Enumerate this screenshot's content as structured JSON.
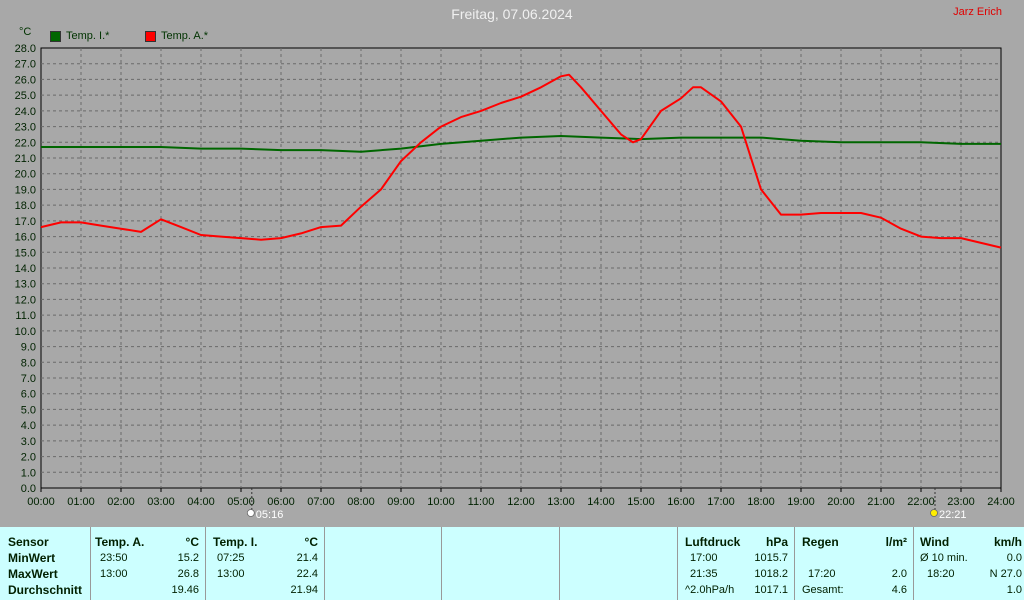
{
  "title": "Freitag, 07.06.2024",
  "author": "Jarz Erich",
  "chart_data": {
    "type": "line",
    "unit_label": "°C",
    "ylim": [
      0,
      28
    ],
    "ytick_step": 1,
    "grid": true,
    "legend_position": "top-left",
    "x_ticks": [
      "00:00",
      "01:00",
      "02:00",
      "03:00",
      "04:00",
      "05:00",
      "06:00",
      "07:00",
      "08:00",
      "09:00",
      "10:00",
      "11:00",
      "12:00",
      "13:00",
      "14:00",
      "15:00",
      "16:00",
      "17:00",
      "18:00",
      "19:00",
      "20:00",
      "21:00",
      "22:00",
      "23:00",
      "24:00"
    ],
    "sunrise": {
      "label": "05:16",
      "hour": 5.27
    },
    "sunset": {
      "label": "22:21",
      "hour": 22.35
    },
    "series": [
      {
        "name": "Temp. I.*",
        "color": "#006600",
        "x": [
          0,
          1,
          2,
          3,
          4,
          5,
          6,
          7,
          8,
          9,
          10,
          11,
          12,
          13,
          14,
          15,
          16,
          17,
          18,
          19,
          20,
          21,
          22,
          23,
          24
        ],
        "y": [
          21.7,
          21.7,
          21.7,
          21.7,
          21.6,
          21.6,
          21.5,
          21.5,
          21.4,
          21.6,
          21.9,
          22.1,
          22.3,
          22.4,
          22.3,
          22.2,
          22.3,
          22.3,
          22.3,
          22.1,
          22.0,
          22.0,
          22.0,
          21.9,
          21.9
        ]
      },
      {
        "name": "Temp. A.*",
        "color": "#ff0000",
        "x": [
          0,
          0.5,
          1,
          1.5,
          2,
          2.5,
          3,
          3.5,
          4,
          4.5,
          5,
          5.5,
          6,
          6.5,
          7,
          7.5,
          8,
          8.5,
          9,
          9.5,
          10,
          10.5,
          11,
          11.5,
          12,
          12.5,
          13,
          13.2,
          13.5,
          14,
          14.5,
          14.8,
          15,
          15.5,
          16,
          16.3,
          16.5,
          17,
          17.5,
          18,
          18.5,
          19,
          19.5,
          20,
          20.5,
          21,
          21.5,
          22,
          22.5,
          23,
          23.5,
          24
        ],
        "y": [
          16.6,
          16.9,
          16.9,
          16.7,
          16.5,
          16.3,
          17.1,
          16.6,
          16.1,
          16.0,
          15.9,
          15.8,
          15.9,
          16.2,
          16.6,
          16.7,
          17.9,
          19.0,
          20.8,
          22.0,
          23.0,
          23.6,
          24.0,
          24.5,
          24.9,
          25.5,
          26.2,
          26.3,
          25.5,
          24.0,
          22.5,
          22.0,
          22.2,
          24.0,
          24.8,
          25.5,
          25.5,
          24.6,
          23.0,
          19.0,
          17.4,
          17.4,
          17.5,
          17.5,
          17.5,
          17.2,
          16.5,
          16.0,
          15.9,
          15.9,
          15.6,
          15.3
        ]
      }
    ]
  },
  "stats": {
    "sensor": {
      "header": "Sensor",
      "rows": [
        "MinWert",
        "MaxWert",
        "Durchschnitt"
      ]
    },
    "temp_a": {
      "header": "Temp. A.",
      "unit": "°C",
      "times": [
        "23:50",
        "13:00",
        ""
      ],
      "values": [
        "15.2",
        "26.8",
        "19.46"
      ]
    },
    "temp_i": {
      "header": "Temp. I.",
      "unit": "°C",
      "times": [
        "07:25",
        "13:00",
        ""
      ],
      "values": [
        "21.4",
        "22.4",
        "21.94"
      ]
    },
    "luftdruck": {
      "header": "Luftdruck",
      "unit": "hPa",
      "times": [
        "17:00",
        "21:35",
        "^2.0hPa/h"
      ],
      "values": [
        "1015.7",
        "1018.2",
        "1017.1"
      ]
    },
    "regen": {
      "header": "Regen",
      "unit": "l/m²",
      "times": [
        "",
        "17:20",
        "Gesamt:"
      ],
      "values": [
        "",
        "2.0",
        "4.6"
      ]
    },
    "wind": {
      "header": "Wind",
      "unit": "km/h",
      "times": [
        "Ø 10 min.",
        "18:20",
        ""
      ],
      "values": [
        "0.0",
        "N 27.0",
        "1.0"
      ]
    }
  }
}
